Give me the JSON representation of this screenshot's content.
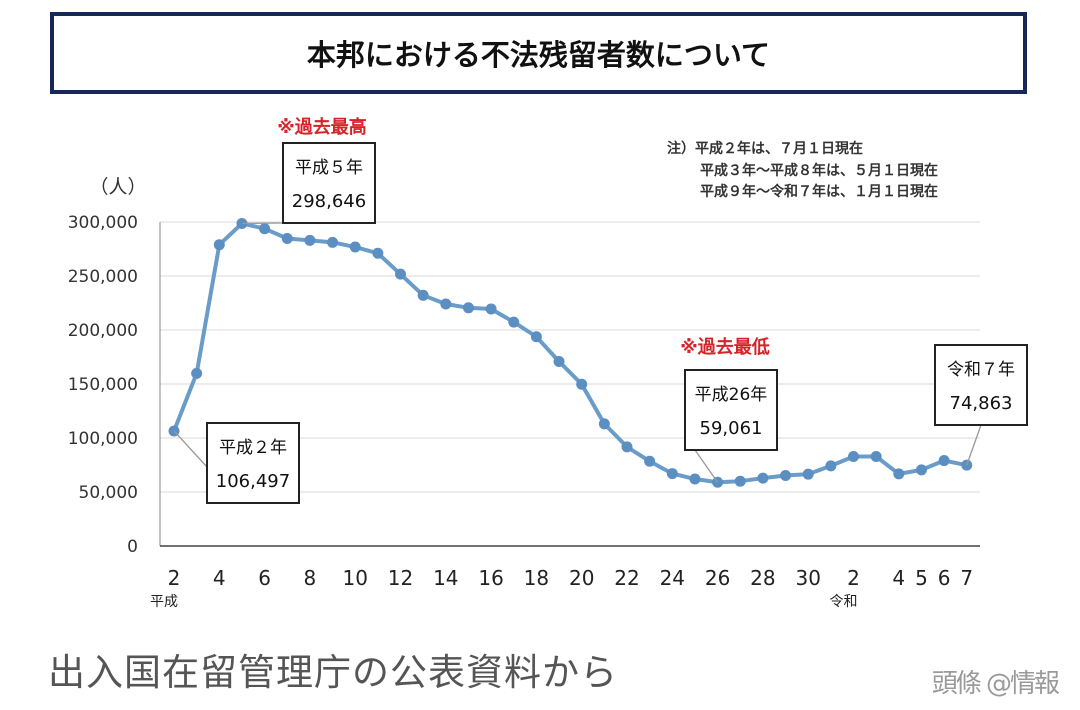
{
  "title": "本邦における不法残留者数について",
  "chart_data": {
    "type": "line",
    "title": "本邦における不法残留者数について",
    "ylabel": "（人）",
    "ylim": [
      0,
      300000
    ],
    "yticks": [
      "300,000",
      "250,000",
      "200,000",
      "150,000",
      "100,000",
      "50,000",
      "0"
    ],
    "ytick_values": [
      300000,
      250000,
      200000,
      150000,
      100000,
      50000,
      0
    ],
    "x_tick_labels": [
      {
        "i": 0,
        "label": "2"
      },
      {
        "i": 2,
        "label": "4"
      },
      {
        "i": 4,
        "label": "6"
      },
      {
        "i": 6,
        "label": "8"
      },
      {
        "i": 8,
        "label": "10"
      },
      {
        "i": 10,
        "label": "12"
      },
      {
        "i": 12,
        "label": "14"
      },
      {
        "i": 14,
        "label": "16"
      },
      {
        "i": 16,
        "label": "18"
      },
      {
        "i": 18,
        "label": "20"
      },
      {
        "i": 20,
        "label": "22"
      },
      {
        "i": 22,
        "label": "24"
      },
      {
        "i": 24,
        "label": "26"
      },
      {
        "i": 26,
        "label": "28"
      },
      {
        "i": 28,
        "label": "30"
      },
      {
        "i": 30,
        "label": "2"
      },
      {
        "i": 32,
        "label": "4"
      },
      {
        "i": 33,
        "label": "5"
      },
      {
        "i": 34,
        "label": "6"
      },
      {
        "i": 35,
        "label": "7"
      }
    ],
    "era_labels": [
      {
        "i": 0,
        "label": "平成"
      },
      {
        "i": 30,
        "label": "令和"
      }
    ],
    "series": [
      {
        "name": "不法残留者数",
        "values": [
          106497,
          159828,
          278892,
          298646,
          293800,
          284744,
          282986,
          281157,
          276810,
          271048,
          251697,
          232121,
          224067,
          220552,
          219418,
          207299,
          193745,
          170839,
          149785,
          113072,
          91778,
          78488,
          67065,
          62009,
          59061,
          60007,
          62818,
          65270,
          66498,
          74167,
          82892,
          82868,
          66759,
          70491,
          79113,
          74863
        ]
      }
    ],
    "annotations": [
      {
        "i": 0,
        "line1": "平成２年",
        "line2": "106,497"
      },
      {
        "i": 3,
        "line1": "平成５年",
        "line2": "298,646"
      },
      {
        "i": 24,
        "line1": "平成26年",
        "line2": "59,061"
      },
      {
        "i": 35,
        "line1": "令和７年",
        "line2": "74,863"
      }
    ],
    "highlight_max": "※過去最高",
    "highlight_min": "※過去最低",
    "notes": [
      "注）平成２年は、７月１日現在",
      "平成３年〜平成８年は、５月１日現在",
      "平成９年〜令和７年は、１月１日現在"
    ],
    "colors": {
      "line": "#6a9cc9",
      "marker": "#5b8fc1",
      "grid": "#d9d9d9",
      "highlight": "#d6232a",
      "axis": "#444444"
    }
  },
  "footer_caption": "出入国在留管理庁の公表資料から",
  "watermark": "頭條 @情報"
}
